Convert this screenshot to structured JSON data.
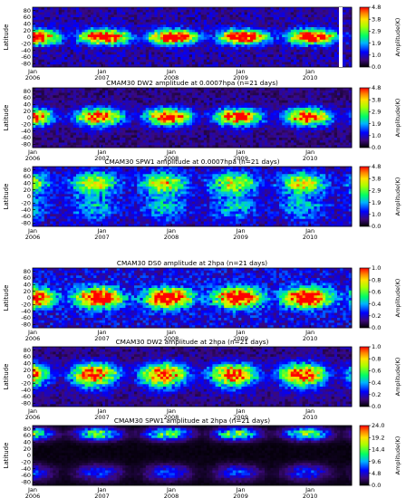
{
  "chart_data": [
    {
      "type": "heatmap",
      "title": "",
      "xlabel": "",
      "ylabel": "Latitude",
      "x_ticks": [
        "Jan 2006",
        "Jan 2007",
        "Jan 2008",
        "Jan 2009",
        "Jan 2010"
      ],
      "y_ticks": [
        80,
        60,
        40,
        20,
        0,
        -20,
        -40,
        -60,
        -80
      ],
      "ylim": [
        -90,
        90
      ],
      "colorbar_label": "Amplitude(K)",
      "colorbar_ticks": [
        "4.8",
        "3.8",
        "2.9",
        "1.9",
        "1.0",
        "0.0"
      ],
      "vmax": 4.8,
      "structure": {
        "lat_center": 0,
        "lat_width": 18,
        "bg": 0.9,
        "peak": 4.4,
        "seed": 3
      }
    },
    {
      "type": "heatmap",
      "title": "CMAM30 DW2 amplitude at 0.0007hpa (n=21 days)",
      "xlabel": "",
      "ylabel": "Latitude",
      "x_ticks": [
        "Jan 2006",
        "Jan 2007",
        "Jan 2008",
        "Jan 2009",
        "Jan 2010"
      ],
      "y_ticks": [
        80,
        60,
        40,
        20,
        0,
        -20,
        -40,
        -60,
        -80
      ],
      "ylim": [
        -90,
        90
      ],
      "colorbar_label": "Amplitude(K)",
      "colorbar_ticks": [
        "4.8",
        "3.8",
        "2.9",
        "1.9",
        "1.0",
        "0.0"
      ],
      "vmax": 4.8,
      "structure": {
        "lat_center": 5,
        "lat_width": 22,
        "bg": 0.7,
        "peak": 3.8,
        "seed": 7
      }
    },
    {
      "type": "heatmap",
      "title": "CMAM30 SPW1 amplitude at 0.0007hpa (n=21 days)",
      "xlabel": "",
      "ylabel": "Latitude",
      "x_ticks": [
        "Jan 2006",
        "Jan 2007",
        "Jan 2008",
        "Jan 2009",
        "Jan 2010"
      ],
      "y_ticks": [
        80,
        60,
        40,
        20,
        0,
        -20,
        -40,
        -60,
        -80
      ],
      "ylim": [
        -90,
        90
      ],
      "colorbar_label": "Amplitude(K)",
      "colorbar_ticks": [
        "4.8",
        "3.8",
        "2.9",
        "1.9",
        "1.0",
        "0.0"
      ],
      "vmax": 4.8,
      "structure": {
        "lat_center": 40,
        "lat_width": 30,
        "bg": 1.0,
        "peak": 3.2,
        "seed": 11
      }
    },
    {
      "type": "heatmap",
      "title": "CMAM30 DS0 amplitude at 2hpa (n=21 days)",
      "xlabel": "",
      "ylabel": "Latitude",
      "x_ticks": [
        "Jan 2006",
        "Jan 2007",
        "Jan 2008",
        "Jan 2009",
        "Jan 2010"
      ],
      "y_ticks": [
        80,
        60,
        40,
        20,
        0,
        -20,
        -40,
        -60,
        -80
      ],
      "ylim": [
        -90,
        90
      ],
      "colorbar_label": "Amplitude(K)",
      "colorbar_ticks": [
        "1.0",
        "0.8",
        "0.6",
        "0.4",
        "0.2",
        "0.0"
      ],
      "vmax": 1.0,
      "structure": {
        "lat_center": 0,
        "lat_width": 25,
        "bg": 0.25,
        "peak": 0.85,
        "seed": 19
      }
    },
    {
      "type": "heatmap",
      "title": "CMAM30 DW2 amplitude at 2hpa (n=21 days)",
      "xlabel": "",
      "ylabel": "Latitude",
      "x_ticks": [
        "Jan 2006",
        "Jan 2007",
        "Jan 2008",
        "Jan 2009",
        "Jan 2010"
      ],
      "y_ticks": [
        80,
        60,
        40,
        20,
        0,
        -20,
        -40,
        -60,
        -80
      ],
      "ylim": [
        -90,
        90
      ],
      "colorbar_label": "Amplitude(K)",
      "colorbar_ticks": [
        "1.0",
        "0.8",
        "0.6",
        "0.4",
        "0.2",
        "0.0"
      ],
      "vmax": 1.0,
      "structure": {
        "lat_center": 10,
        "lat_width": 28,
        "bg": 0.15,
        "peak": 0.8,
        "seed": 23
      }
    },
    {
      "type": "heatmap",
      "title": "CMAM30 SPW1 amplitude at 2hpa (n=21 days)",
      "xlabel": "",
      "ylabel": "Latitude",
      "x_ticks": [
        "Jan 2006",
        "Jan 2007",
        "Jan 2008",
        "Jan 2009",
        "Jan 2010"
      ],
      "y_ticks": [
        80,
        60,
        40,
        20,
        0,
        -20,
        -40,
        -60,
        -80
      ],
      "ylim": [
        -90,
        90
      ],
      "colorbar_label": "Amplitude(K)",
      "colorbar_ticks": [
        "24.0",
        "19.2",
        "14.4",
        "9.6",
        "4.8",
        "0.0"
      ],
      "vmax": 24.0,
      "structure": {
        "lat_center": 65,
        "lat_width": 18,
        "bg": 0.5,
        "peak": 17.0,
        "seed": 31
      }
    }
  ]
}
